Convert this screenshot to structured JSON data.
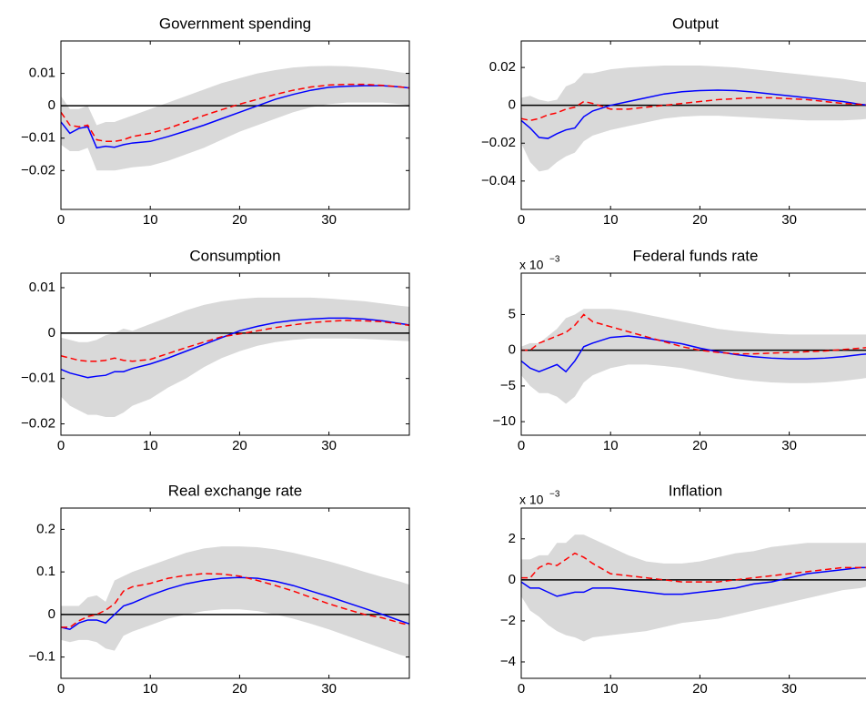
{
  "chart_data": [
    {
      "type": "line",
      "title": "Government spending",
      "x": [
        0,
        1,
        2,
        3,
        4,
        5,
        6,
        7,
        8,
        10,
        12,
        14,
        16,
        18,
        20,
        22,
        24,
        26,
        28,
        30,
        32,
        34,
        36,
        38,
        39
      ],
      "xlim": [
        0,
        39
      ],
      "xticks": [
        0,
        10,
        20,
        30
      ],
      "ylim": [
        -0.032,
        0.02
      ],
      "yticks": [
        {
          "value": -0.02,
          "label": "−0.02"
        },
        {
          "value": -0.01,
          "label": "−0.01"
        },
        0,
        0.01
      ],
      "hline": 0,
      "band": {
        "color": "#d9d9d9",
        "lower": [
          -0.012,
          -0.014,
          -0.014,
          -0.013,
          -0.02,
          -0.02,
          -0.02,
          -0.0195,
          -0.019,
          -0.0185,
          -0.017,
          -0.015,
          -0.013,
          -0.0105,
          -0.008,
          -0.006,
          -0.004,
          -0.002,
          -0.0005,
          0.0005,
          0.001,
          0.001,
          0.001,
          0.0005,
          0.0002
        ],
        "upper": [
          0.003,
          -0.001,
          -0.001,
          0,
          -0.006,
          -0.005,
          -0.005,
          -0.004,
          -0.003,
          -0.001,
          0.001,
          0.003,
          0.005,
          0.007,
          0.0085,
          0.01,
          0.011,
          0.0118,
          0.0122,
          0.0123,
          0.0122,
          0.0118,
          0.0112,
          0.0103,
          0.01
        ]
      },
      "series": [
        {
          "color": "#0000ff",
          "dash": "solid",
          "values": [
            -0.005,
            -0.0085,
            -0.007,
            -0.0065,
            -0.013,
            -0.0125,
            -0.0128,
            -0.012,
            -0.0115,
            -0.011,
            -0.0095,
            -0.0078,
            -0.006,
            -0.004,
            -0.002,
            0,
            0.002,
            0.0035,
            0.0048,
            0.0057,
            0.006,
            0.0062,
            0.0062,
            0.0058,
            0.0055
          ]
        },
        {
          "color": "#ff0000",
          "dash": "dashed",
          "values": [
            -0.002,
            -0.006,
            -0.0065,
            -0.006,
            -0.0105,
            -0.011,
            -0.011,
            -0.0105,
            -0.0095,
            -0.0085,
            -0.007,
            -0.005,
            -0.003,
            -0.0012,
            0.0005,
            0.002,
            0.0035,
            0.0048,
            0.0058,
            0.0064,
            0.0066,
            0.0066,
            0.0063,
            0.0058,
            0.0055
          ]
        }
      ]
    },
    {
      "type": "line",
      "title": "Output",
      "x": [
        0,
        1,
        2,
        3,
        4,
        5,
        6,
        7,
        8,
        10,
        12,
        14,
        16,
        18,
        20,
        22,
        24,
        26,
        28,
        30,
        32,
        34,
        36,
        38,
        39
      ],
      "xlim": [
        0,
        39
      ],
      "xticks": [
        0,
        10,
        20,
        30
      ],
      "ylim": [
        -0.055,
        0.034
      ],
      "yticks": [
        {
          "value": -0.04,
          "label": "−0.04"
        },
        {
          "value": -0.02,
          "label": "−0.02"
        },
        0,
        0.02
      ],
      "hline": 0,
      "band": {
        "color": "#d9d9d9",
        "lower": [
          -0.02,
          -0.03,
          -0.035,
          -0.034,
          -0.03,
          -0.027,
          -0.025,
          -0.019,
          -0.016,
          -0.013,
          -0.011,
          -0.009,
          -0.007,
          -0.006,
          -0.0055,
          -0.0055,
          -0.006,
          -0.0065,
          -0.007,
          -0.0075,
          -0.008,
          -0.008,
          -0.008,
          -0.0075,
          -0.007
        ],
        "upper": [
          0.004,
          0.005,
          0.003,
          0.002,
          0.003,
          0.01,
          0.012,
          0.017,
          0.017,
          0.019,
          0.02,
          0.0205,
          0.021,
          0.021,
          0.021,
          0.0205,
          0.02,
          0.019,
          0.018,
          0.017,
          0.016,
          0.015,
          0.014,
          0.0125,
          0.012
        ]
      },
      "series": [
        {
          "color": "#0000ff",
          "dash": "solid",
          "values": [
            -0.008,
            -0.012,
            -0.017,
            -0.0175,
            -0.015,
            -0.013,
            -0.012,
            -0.006,
            -0.003,
            0,
            0.002,
            0.004,
            0.006,
            0.0072,
            0.0078,
            0.008,
            0.0078,
            0.007,
            0.006,
            0.005,
            0.004,
            0.003,
            0.002,
            0.0005,
            0
          ]
        },
        {
          "color": "#ff0000",
          "dash": "dashed",
          "values": [
            -0.007,
            -0.008,
            -0.007,
            -0.005,
            -0.004,
            -0.002,
            -0.001,
            0.002,
            0.001,
            -0.002,
            -0.002,
            -0.001,
            0,
            0.001,
            0.002,
            0.003,
            0.0035,
            0.004,
            0.004,
            0.0035,
            0.003,
            0.002,
            0.001,
            0.0005,
            0
          ]
        }
      ]
    },
    {
      "type": "line",
      "title": "Consumption",
      "x": [
        0,
        1,
        2,
        3,
        4,
        5,
        6,
        7,
        8,
        10,
        12,
        14,
        16,
        18,
        20,
        22,
        24,
        26,
        28,
        30,
        32,
        34,
        36,
        38,
        39
      ],
      "xlim": [
        0,
        39
      ],
      "xticks": [
        0,
        10,
        20,
        30
      ],
      "ylim": [
        -0.0225,
        0.0132
      ],
      "yticks": [
        {
          "value": -0.02,
          "label": "−0.02"
        },
        {
          "value": -0.01,
          "label": "−0.01"
        },
        0,
        0.01
      ],
      "hline": 0,
      "band": {
        "color": "#d9d9d9",
        "lower": [
          -0.014,
          -0.016,
          -0.017,
          -0.018,
          -0.018,
          -0.0185,
          -0.0185,
          -0.0175,
          -0.016,
          -0.0145,
          -0.012,
          -0.01,
          -0.0075,
          -0.0055,
          -0.004,
          -0.0028,
          -0.002,
          -0.0015,
          -0.0012,
          -0.0012,
          -0.0012,
          -0.0013,
          -0.0015,
          -0.0017,
          -0.0018
        ],
        "upper": [
          -0.001,
          -0.0015,
          -0.002,
          -0.002,
          -0.0015,
          -0.0005,
          0,
          0.001,
          0.0005,
          0.002,
          0.0035,
          0.005,
          0.0062,
          0.007,
          0.0075,
          0.0078,
          0.0078,
          0.0078,
          0.0078,
          0.0076,
          0.0073,
          0.007,
          0.0065,
          0.006,
          0.0058
        ]
      },
      "series": [
        {
          "color": "#0000ff",
          "dash": "solid",
          "values": [
            -0.008,
            -0.0088,
            -0.0093,
            -0.0098,
            -0.0095,
            -0.0093,
            -0.0085,
            -0.0085,
            -0.0078,
            -0.0068,
            -0.0055,
            -0.004,
            -0.0025,
            -0.001,
            0.0005,
            0.0015,
            0.0023,
            0.0028,
            0.0031,
            0.0033,
            0.0033,
            0.0031,
            0.0027,
            0.0021,
            0.0018
          ]
        },
        {
          "color": "#ff0000",
          "dash": "dashed",
          "values": [
            -0.005,
            -0.0055,
            -0.006,
            -0.0062,
            -0.0062,
            -0.006,
            -0.0055,
            -0.006,
            -0.0062,
            -0.0058,
            -0.0045,
            -0.0032,
            -0.002,
            -0.0008,
            -0.0002,
            0.0005,
            0.0012,
            0.0018,
            0.0023,
            0.0026,
            0.0028,
            0.0027,
            0.0025,
            0.002,
            0.0017
          ]
        }
      ]
    },
    {
      "type": "line",
      "title": "Federal funds rate",
      "scale_label": {
        "base": "x 10",
        "exponent": "−3"
      },
      "x": [
        0,
        1,
        2,
        3,
        4,
        5,
        6,
        7,
        8,
        10,
        12,
        14,
        16,
        18,
        20,
        22,
        24,
        26,
        28,
        30,
        32,
        34,
        36,
        38,
        39
      ],
      "xlim": [
        0,
        39
      ],
      "xticks": [
        0,
        10,
        20,
        30
      ],
      "ylim": [
        -11.9,
        10.8
      ],
      "yticks": [
        {
          "value": -10,
          "label": "−10"
        },
        {
          "value": -5,
          "label": "−5"
        },
        0,
        5
      ],
      "hline": 0,
      "band": {
        "color": "#d9d9d9",
        "lower": [
          -3.5,
          -5,
          -6,
          -6,
          -6.5,
          -7.5,
          -6.5,
          -4.5,
          -3.5,
          -2.5,
          -2,
          -2,
          -2.2,
          -2.5,
          -3,
          -3.5,
          -4,
          -4.3,
          -4.5,
          -4.6,
          -4.6,
          -4.5,
          -4.3,
          -4,
          -3.8
        ],
        "upper": [
          0.5,
          1,
          1,
          2,
          3,
          4.5,
          5,
          5.8,
          5.8,
          5.8,
          5.5,
          5,
          4.5,
          4,
          3.5,
          3,
          2.7,
          2.5,
          2.3,
          2.2,
          2.2,
          2.2,
          2.2,
          2.2,
          2.2
        ]
      },
      "series": [
        {
          "color": "#0000ff",
          "dash": "solid",
          "values": [
            -1.5,
            -2.5,
            -3,
            -2.5,
            -2,
            -3,
            -1.5,
            0.5,
            1,
            1.8,
            2,
            1.7,
            1.3,
            0.9,
            0.3,
            -0.2,
            -0.6,
            -0.9,
            -1.1,
            -1.2,
            -1.2,
            -1.1,
            -0.9,
            -0.6,
            -0.5
          ]
        },
        {
          "color": "#ff0000",
          "dash": "dashed",
          "values": [
            0,
            0,
            1,
            1.5,
            2,
            2.5,
            3.5,
            5,
            4,
            3.3,
            2.6,
            1.9,
            1.2,
            0.5,
            0,
            -0.3,
            -0.5,
            -0.5,
            -0.4,
            -0.3,
            -0.2,
            -0.1,
            0.1,
            0.3,
            0.4
          ]
        }
      ]
    },
    {
      "type": "line",
      "title": "Real exchange rate",
      "x": [
        0,
        1,
        2,
        3,
        4,
        5,
        6,
        7,
        8,
        10,
        12,
        14,
        16,
        18,
        20,
        22,
        24,
        26,
        28,
        30,
        32,
        34,
        36,
        38,
        39
      ],
      "xlim": [
        0,
        39
      ],
      "xticks": [
        0,
        10,
        20,
        30
      ],
      "ylim": [
        -0.15,
        0.25
      ],
      "yticks": [
        {
          "value": -0.1,
          "label": "−0.1"
        },
        0,
        0.1,
        0.2
      ],
      "hline": 0,
      "band": {
        "color": "#d9d9d9",
        "lower": [
          -0.06,
          -0.065,
          -0.06,
          -0.06,
          -0.065,
          -0.08,
          -0.085,
          -0.05,
          -0.04,
          -0.025,
          -0.01,
          0,
          0.008,
          0.012,
          0.012,
          0.008,
          0,
          -0.01,
          -0.022,
          -0.035,
          -0.05,
          -0.065,
          -0.08,
          -0.095,
          -0.1
        ],
        "upper": [
          0.02,
          0.02,
          0.02,
          0.04,
          0.045,
          0.03,
          0.08,
          0.09,
          0.1,
          0.115,
          0.13,
          0.145,
          0.155,
          0.16,
          0.16,
          0.158,
          0.153,
          0.145,
          0.135,
          0.125,
          0.113,
          0.1,
          0.088,
          0.077,
          0.07
        ]
      },
      "series": [
        {
          "color": "#0000ff",
          "dash": "solid",
          "values": [
            -0.03,
            -0.035,
            -0.02,
            -0.013,
            -0.013,
            -0.02,
            0,
            0.02,
            0.027,
            0.045,
            0.06,
            0.072,
            0.08,
            0.085,
            0.087,
            0.085,
            0.078,
            0.068,
            0.055,
            0.042,
            0.028,
            0.014,
            0,
            -0.015,
            -0.022
          ]
        },
        {
          "color": "#ff0000",
          "dash": "dashed",
          "values": [
            -0.03,
            -0.03,
            -0.015,
            -0.005,
            0,
            0.01,
            0.025,
            0.055,
            0.065,
            0.073,
            0.085,
            0.092,
            0.096,
            0.095,
            0.09,
            0.08,
            0.068,
            0.055,
            0.04,
            0.025,
            0.012,
            0,
            -0.008,
            -0.02,
            -0.025
          ]
        }
      ]
    },
    {
      "type": "line",
      "title": "Inflation",
      "scale_label": {
        "base": "x 10",
        "exponent": "−3"
      },
      "x": [
        0,
        1,
        2,
        3,
        4,
        5,
        6,
        7,
        8,
        10,
        12,
        14,
        16,
        18,
        20,
        22,
        24,
        26,
        28,
        30,
        32,
        34,
        36,
        38,
        39
      ],
      "xlim": [
        0,
        39
      ],
      "xticks": [
        0,
        10,
        20,
        30
      ],
      "ylim": [
        -4.8,
        3.5
      ],
      "yticks": [
        {
          "value": -4,
          "label": "−4"
        },
        {
          "value": -2,
          "label": "−2"
        },
        0,
        2
      ],
      "hline": 0,
      "band": {
        "color": "#d9d9d9",
        "lower": [
          -0.8,
          -1.5,
          -1.8,
          -2.2,
          -2.5,
          -2.7,
          -2.8,
          -3,
          -2.8,
          -2.7,
          -2.6,
          -2.5,
          -2.3,
          -2.1,
          -2,
          -1.9,
          -1.7,
          -1.5,
          -1.3,
          -1.1,
          -0.9,
          -0.7,
          -0.5,
          -0.4,
          -0.3
        ],
        "upper": [
          1,
          1,
          1.2,
          1.2,
          1.8,
          1.8,
          2.2,
          2.2,
          2,
          1.6,
          1.2,
          0.9,
          0.8,
          0.8,
          0.9,
          1.1,
          1.3,
          1.4,
          1.6,
          1.7,
          1.8,
          1.8,
          1.8,
          1.8,
          1.8
        ]
      },
      "series": [
        {
          "color": "#0000ff",
          "dash": "solid",
          "values": [
            -0.1,
            -0.4,
            -0.4,
            -0.6,
            -0.8,
            -0.7,
            -0.6,
            -0.6,
            -0.4,
            -0.4,
            -0.5,
            -0.6,
            -0.7,
            -0.7,
            -0.6,
            -0.5,
            -0.4,
            -0.2,
            -0.1,
            0.1,
            0.3,
            0.4,
            0.5,
            0.6,
            0.6
          ]
        },
        {
          "color": "#ff0000",
          "dash": "dashed",
          "values": [
            0.1,
            0.1,
            0.6,
            0.8,
            0.7,
            1,
            1.3,
            1.1,
            0.8,
            0.3,
            0.2,
            0.1,
            0,
            -0.1,
            -0.1,
            -0.1,
            0,
            0.1,
            0.2,
            0.3,
            0.4,
            0.5,
            0.6,
            0.6,
            0.6
          ]
        }
      ]
    }
  ]
}
